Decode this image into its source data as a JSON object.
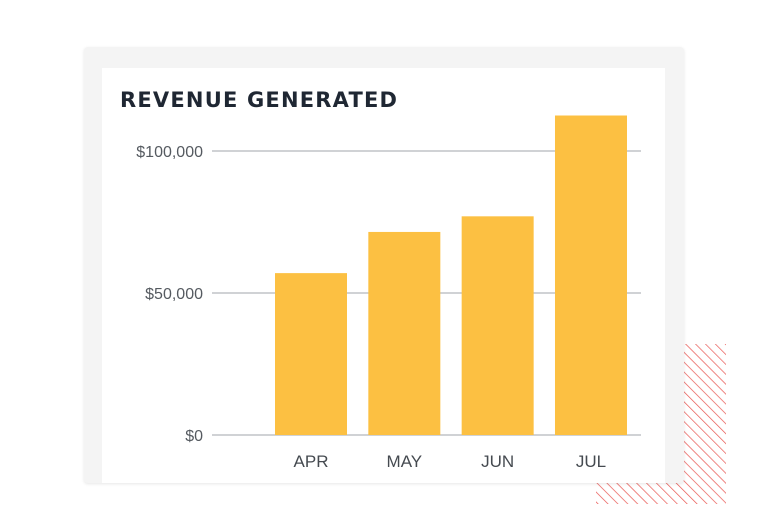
{
  "chart_data": {
    "type": "bar",
    "title": "REVENUE GENERATED",
    "xlabel": "",
    "ylabel": "",
    "categories": [
      "APR",
      "MAY",
      "JUN",
      "JUL"
    ],
    "values": [
      57000,
      71500,
      77000,
      112500
    ],
    "ylim": [
      0,
      100000
    ],
    "yticks": [
      {
        "value": 0,
        "label": "$0"
      },
      {
        "value": 50000,
        "label": "$50,000"
      },
      {
        "value": 100000,
        "label": "$100,000"
      }
    ],
    "grid": true,
    "legend": "none",
    "bar_color": "#fcc042",
    "grid_color": "#b4b8bc"
  },
  "decoration": {
    "hatch_color": "#e8534f"
  }
}
